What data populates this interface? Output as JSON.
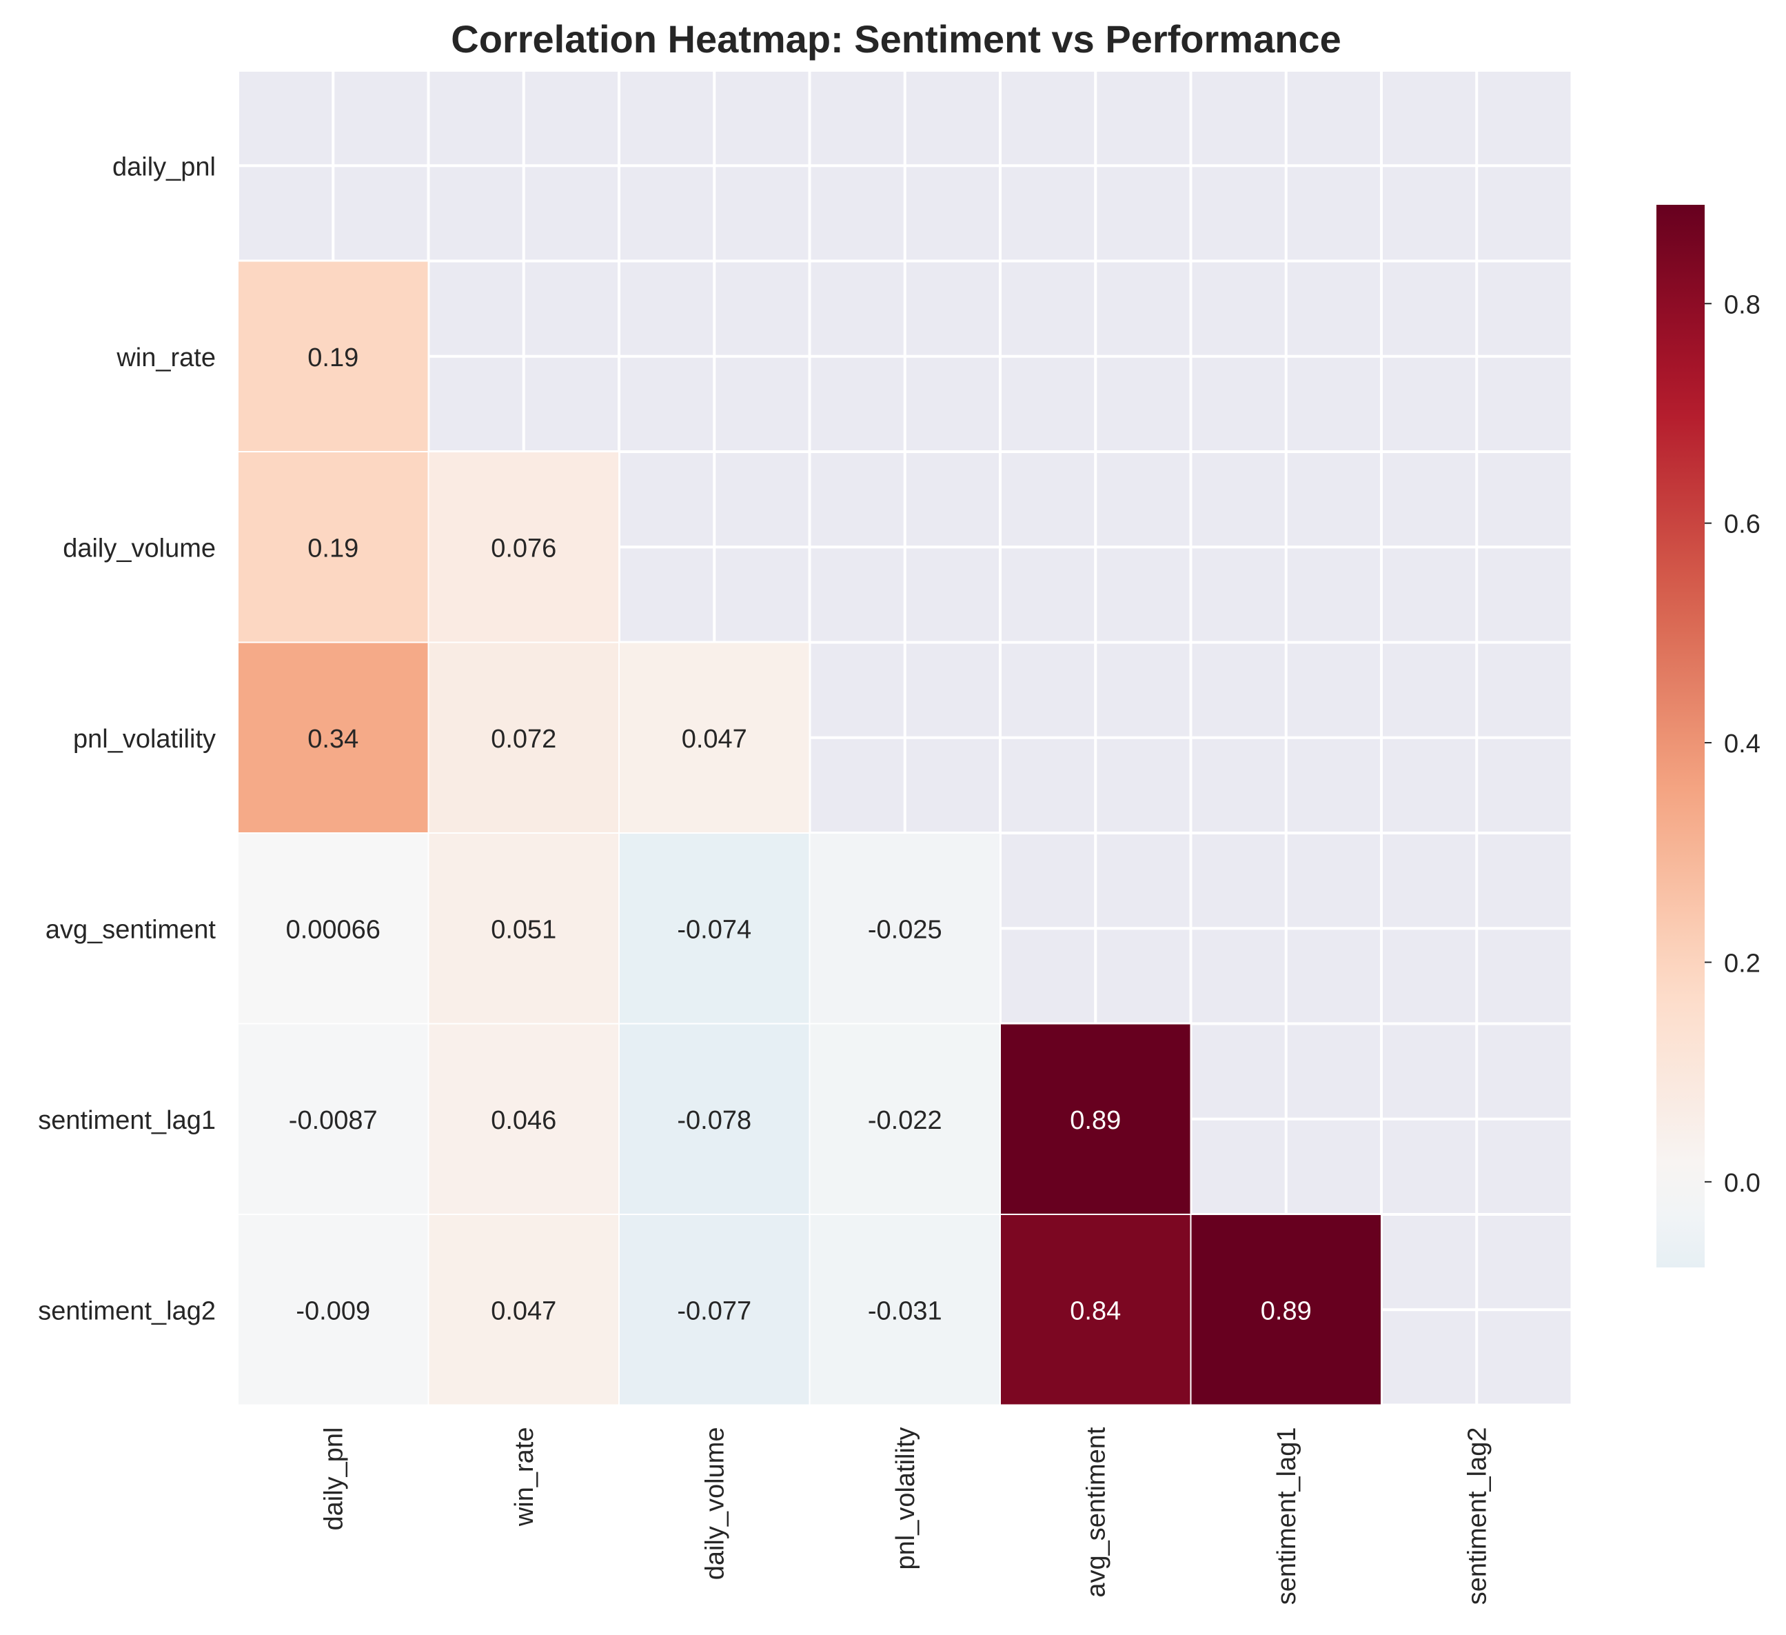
{
  "chart_data": {
    "type": "heatmap",
    "title": "Correlation Heatmap: Sentiment vs Performance",
    "xlabel": "",
    "ylabel": "",
    "variables": [
      "daily_pnl",
      "win_rate",
      "daily_volume",
      "pnl_volatility",
      "avg_sentiment",
      "sentiment_lag1",
      "sentiment_lag2"
    ],
    "mask": "upper-triangle-including-diagonal",
    "cells": [
      {
        "row": 1,
        "col": 0,
        "value": 0.19,
        "label": "0.19"
      },
      {
        "row": 2,
        "col": 0,
        "value": 0.19,
        "label": "0.19"
      },
      {
        "row": 2,
        "col": 1,
        "value": 0.076,
        "label": "0.076"
      },
      {
        "row": 3,
        "col": 0,
        "value": 0.34,
        "label": "0.34"
      },
      {
        "row": 3,
        "col": 1,
        "value": 0.072,
        "label": "0.072"
      },
      {
        "row": 3,
        "col": 2,
        "value": 0.047,
        "label": "0.047"
      },
      {
        "row": 4,
        "col": 0,
        "value": 0.00066,
        "label": "0.00066"
      },
      {
        "row": 4,
        "col": 1,
        "value": 0.051,
        "label": "0.051"
      },
      {
        "row": 4,
        "col": 2,
        "value": -0.074,
        "label": "-0.074"
      },
      {
        "row": 4,
        "col": 3,
        "value": -0.025,
        "label": "-0.025"
      },
      {
        "row": 5,
        "col": 0,
        "value": -0.0087,
        "label": "-0.0087"
      },
      {
        "row": 5,
        "col": 1,
        "value": 0.046,
        "label": "0.046"
      },
      {
        "row": 5,
        "col": 2,
        "value": -0.078,
        "label": "-0.078"
      },
      {
        "row": 5,
        "col": 3,
        "value": -0.022,
        "label": "-0.022"
      },
      {
        "row": 5,
        "col": 4,
        "value": 0.89,
        "label": "0.89"
      },
      {
        "row": 6,
        "col": 0,
        "value": -0.009,
        "label": "-0.009"
      },
      {
        "row": 6,
        "col": 1,
        "value": 0.047,
        "label": "0.047"
      },
      {
        "row": 6,
        "col": 2,
        "value": -0.077,
        "label": "-0.077"
      },
      {
        "row": 6,
        "col": 3,
        "value": -0.031,
        "label": "-0.031"
      },
      {
        "row": 6,
        "col": 4,
        "value": 0.84,
        "label": "0.84"
      },
      {
        "row": 6,
        "col": 5,
        "value": 0.89,
        "label": "0.89"
      }
    ],
    "colorbar": {
      "colormap": "RdBu_r",
      "center": 0,
      "vmin": -0.078,
      "vmax": 0.89,
      "ticks": [
        0.0,
        0.2,
        0.4,
        0.6,
        0.8
      ],
      "tick_labels": [
        "0.0",
        "0.2",
        "0.4",
        "0.6",
        "0.8"
      ]
    },
    "grid": true,
    "background_color": "#eaeaf2"
  }
}
